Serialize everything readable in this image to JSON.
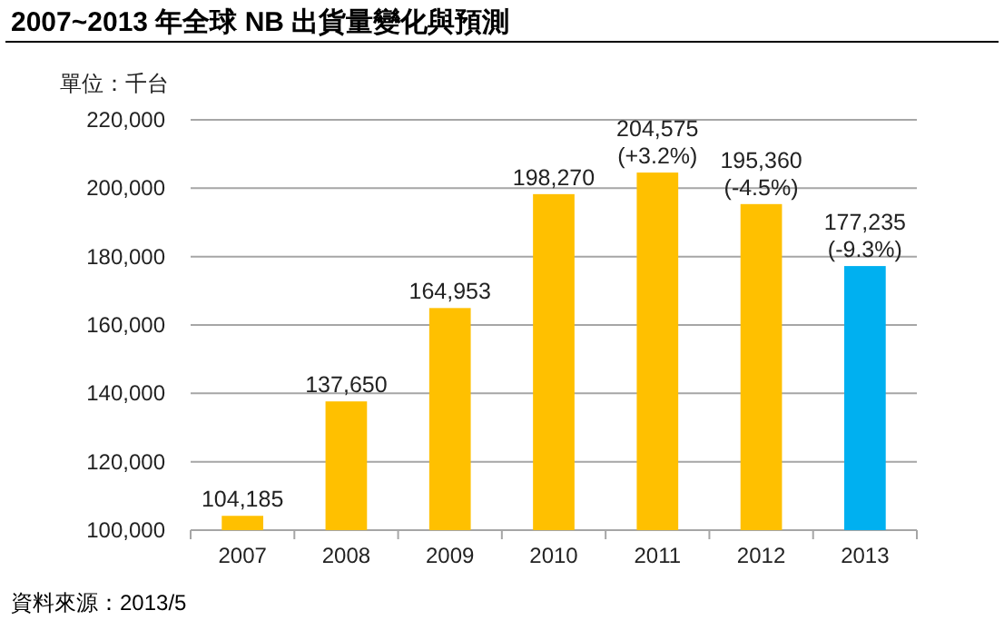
{
  "chart_data": {
    "type": "bar",
    "title": "2007~2013 年全球 NB 出貨量變化與預測",
    "ylabel": "單位：千台",
    "categories": [
      "2007",
      "2008",
      "2009",
      "2010",
      "2011",
      "2012",
      "2013"
    ],
    "values": [
      104185,
      137650,
      164953,
      198270,
      204575,
      195360,
      177235
    ],
    "colors": [
      "#ffc000",
      "#ffc000",
      "#ffc000",
      "#ffc000",
      "#ffc000",
      "#ffc000",
      "#00b0f0"
    ],
    "value_labels": [
      "104,185",
      "137,650",
      "164,953",
      "198,270",
      "204,575\n(+3.2%)",
      "195,360\n(-4.5%)",
      "177,235\n(-9.3%)"
    ],
    "ylim": [
      100000,
      220000
    ],
    "yticks": [
      {
        "value": 100000,
        "label": "100,000"
      },
      {
        "value": 120000,
        "label": "120,000"
      },
      {
        "value": 140000,
        "label": "140,000"
      },
      {
        "value": 160000,
        "label": "160,000"
      },
      {
        "value": 180000,
        "label": "180,000"
      },
      {
        "value": 200000,
        "label": "200,000"
      },
      {
        "value": 220000,
        "label": "220,000"
      }
    ],
    "grid": "y",
    "annotations": [
      "資料來源：2013/5"
    ]
  }
}
